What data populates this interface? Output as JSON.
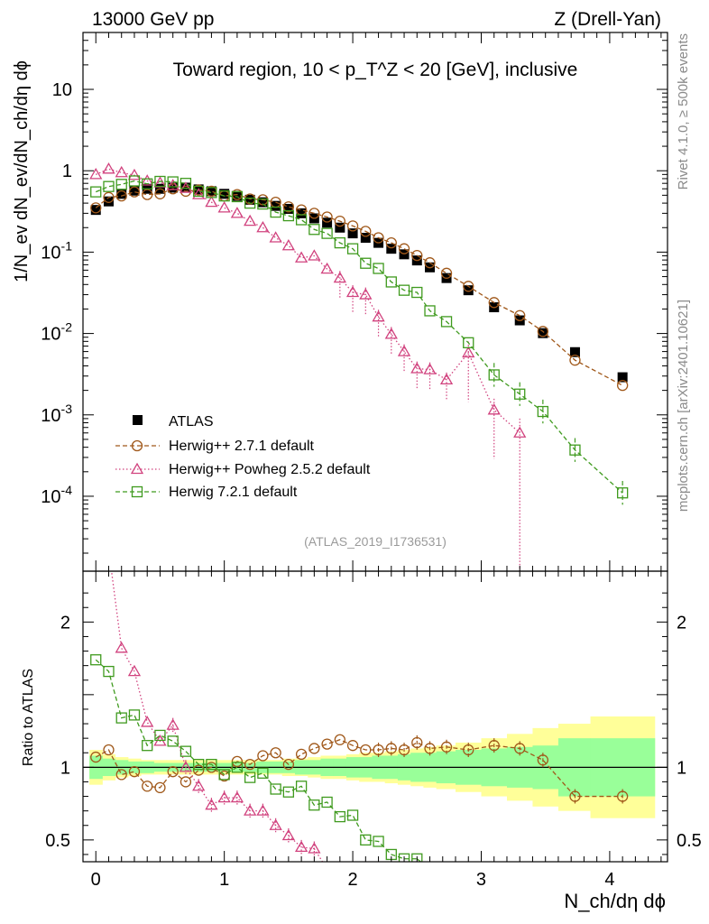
{
  "header": {
    "left": "13000 GeV pp",
    "right": "Z (Drell-Yan)"
  },
  "side_labels": {
    "top": "Rivet 4.1.0, ≥ 500k events",
    "bottom": "mcplots.cern.ch [arXiv:2401.10621]"
  },
  "chart_data": {
    "type": "scatter",
    "title": "Toward region, 10 < p_T^Z < 20 [GeV], inclusive",
    "xlabel": "N_ch/dη dϕ",
    "ylabel": "1/N_ev dN_ev/dN_ch/dη dϕ",
    "ratio_ylabel": "Ratio to ATLAS",
    "analysis": "(ATLAS_2019_I1736531)",
    "x_range": [
      -0.1,
      4.45
    ],
    "y_range_main": [
      1.2e-05,
      50
    ],
    "y_range_ratio": [
      0.35,
      2.35
    ],
    "x_ticks": [
      "0",
      "1",
      "2",
      "3",
      "4"
    ],
    "y_ticks_main": [
      "10",
      "1",
      "10^-1",
      "10^-2",
      "10^-3",
      "10^-4"
    ],
    "y_ticks_ratio": [
      "2",
      "1",
      "0.5"
    ],
    "legend": [
      "ATLAS",
      "Herwig++ 2.7.1 default",
      "Herwig++ Powheg 2.5.2 default",
      "Herwig 7.2.1 default"
    ],
    "colors": {
      "atlas": "#000000",
      "herwigpp": "#a0581a",
      "powheg": "#d1427e",
      "herwig7": "#3f9a1e",
      "band_inner": "#99ff99",
      "band_outer": "#ffff99"
    },
    "x": [
      0.0,
      0.1,
      0.2,
      0.3,
      0.4,
      0.5,
      0.6,
      0.7,
      0.8,
      0.9,
      1.0,
      1.1,
      1.2,
      1.3,
      1.4,
      1.5,
      1.6,
      1.7,
      1.8,
      1.9,
      2.0,
      2.1,
      2.2,
      2.3,
      2.4,
      2.5,
      2.6,
      2.73,
      2.9,
      3.1,
      3.3,
      3.48,
      3.73,
      4.1
    ],
    "atlas": [
      0.33,
      0.42,
      0.52,
      0.57,
      0.6,
      0.6,
      0.62,
      0.62,
      0.59,
      0.56,
      0.52,
      0.49,
      0.44,
      0.41,
      0.37,
      0.34,
      0.3,
      0.26,
      0.23,
      0.2,
      0.17,
      0.15,
      0.13,
      0.11,
      0.094,
      0.079,
      0.065,
      0.048,
      0.034,
      0.021,
      0.0145,
      0.0101,
      0.0059,
      0.0029
    ],
    "herwigpp": [
      0.35,
      0.47,
      0.49,
      0.55,
      0.51,
      0.52,
      0.6,
      0.56,
      0.58,
      0.56,
      0.49,
      0.51,
      0.45,
      0.44,
      0.41,
      0.36,
      0.33,
      0.3,
      0.27,
      0.24,
      0.21,
      0.18,
      0.15,
      0.13,
      0.11,
      0.091,
      0.074,
      0.055,
      0.038,
      0.024,
      0.0166,
      0.0106,
      0.0047,
      0.0023
    ],
    "powheg": [
      0.9,
      1.05,
      0.95,
      0.88,
      0.75,
      0.71,
      0.66,
      0.61,
      0.51,
      0.41,
      0.35,
      0.3,
      0.24,
      0.2,
      0.15,
      0.12,
      0.085,
      0.09,
      0.062,
      0.048,
      0.032,
      0.03,
      0.016,
      0.0098,
      0.006,
      0.0037,
      0.0036,
      0.0027,
      0.0058,
      0.00115,
      0.0006
    ],
    "herwig7": [
      0.55,
      0.64,
      0.68,
      0.75,
      0.69,
      0.74,
      0.73,
      0.7,
      0.56,
      0.54,
      0.49,
      0.48,
      0.4,
      0.39,
      0.31,
      0.28,
      0.25,
      0.19,
      0.17,
      0.13,
      0.11,
      0.073,
      0.063,
      0.043,
      0.034,
      0.032,
      0.019,
      0.014,
      0.0077,
      0.0031,
      0.0018,
      0.0011,
      0.00037,
      0.00011
    ],
    "ratio_herwigpp": [
      1.07,
      1.12,
      0.95,
      0.97,
      0.87,
      0.86,
      0.97,
      0.9,
      0.98,
      1.0,
      0.94,
      1.04,
      1.02,
      1.08,
      1.1,
      1.02,
      1.09,
      1.13,
      1.16,
      1.19,
      1.15,
      1.12,
      1.12,
      1.13,
      1.12,
      1.17,
      1.13,
      1.14,
      1.12,
      1.15,
      1.13,
      1.05,
      0.8,
      0.8
    ],
    "ratio_powheg": [
      2.6,
      2.5,
      1.82,
      1.66,
      1.31,
      1.18,
      1.29,
      1.0,
      0.87,
      0.74,
      0.79,
      0.79,
      0.7,
      0.7,
      0.6,
      0.53,
      0.45,
      0.44
    ],
    "ratio_herwig7": [
      1.74,
      1.66,
      1.34,
      1.36,
      1.15,
      1.22,
      1.18,
      1.11,
      1.02,
      1.02,
      0.95,
      1.0,
      0.93,
      0.96,
      0.85,
      0.83,
      0.87,
      0.74,
      0.76,
      0.66,
      0.67,
      0.5,
      0.49,
      0.4,
      0.37,
      0.37
    ],
    "band_edges": [
      -0.05,
      0.05,
      0.15,
      0.25,
      0.35,
      0.45,
      0.55,
      0.65,
      0.75,
      0.85,
      0.95,
      1.05,
      1.15,
      1.25,
      1.35,
      1.45,
      1.55,
      1.65,
      1.75,
      1.85,
      1.95,
      2.05,
      2.15,
      2.25,
      2.35,
      2.45,
      2.55,
      2.65,
      2.8,
      3.0,
      3.2,
      3.4,
      3.6,
      3.85,
      4.35
    ],
    "band_inner": [
      0.08,
      0.06,
      0.05,
      0.04,
      0.04,
      0.03,
      0.03,
      0.03,
      0.03,
      0.03,
      0.03,
      0.03,
      0.03,
      0.04,
      0.04,
      0.04,
      0.05,
      0.05,
      0.06,
      0.06,
      0.07,
      0.07,
      0.08,
      0.08,
      0.09,
      0.1,
      0.1,
      0.11,
      0.12,
      0.13,
      0.14,
      0.15,
      0.2,
      0.2
    ],
    "band_outer": [
      0.12,
      0.09,
      0.07,
      0.06,
      0.05,
      0.05,
      0.05,
      0.05,
      0.05,
      0.05,
      0.05,
      0.05,
      0.05,
      0.05,
      0.05,
      0.06,
      0.06,
      0.07,
      0.08,
      0.08,
      0.09,
      0.1,
      0.1,
      0.11,
      0.12,
      0.13,
      0.14,
      0.15,
      0.17,
      0.2,
      0.23,
      0.27,
      0.3,
      0.35
    ]
  }
}
